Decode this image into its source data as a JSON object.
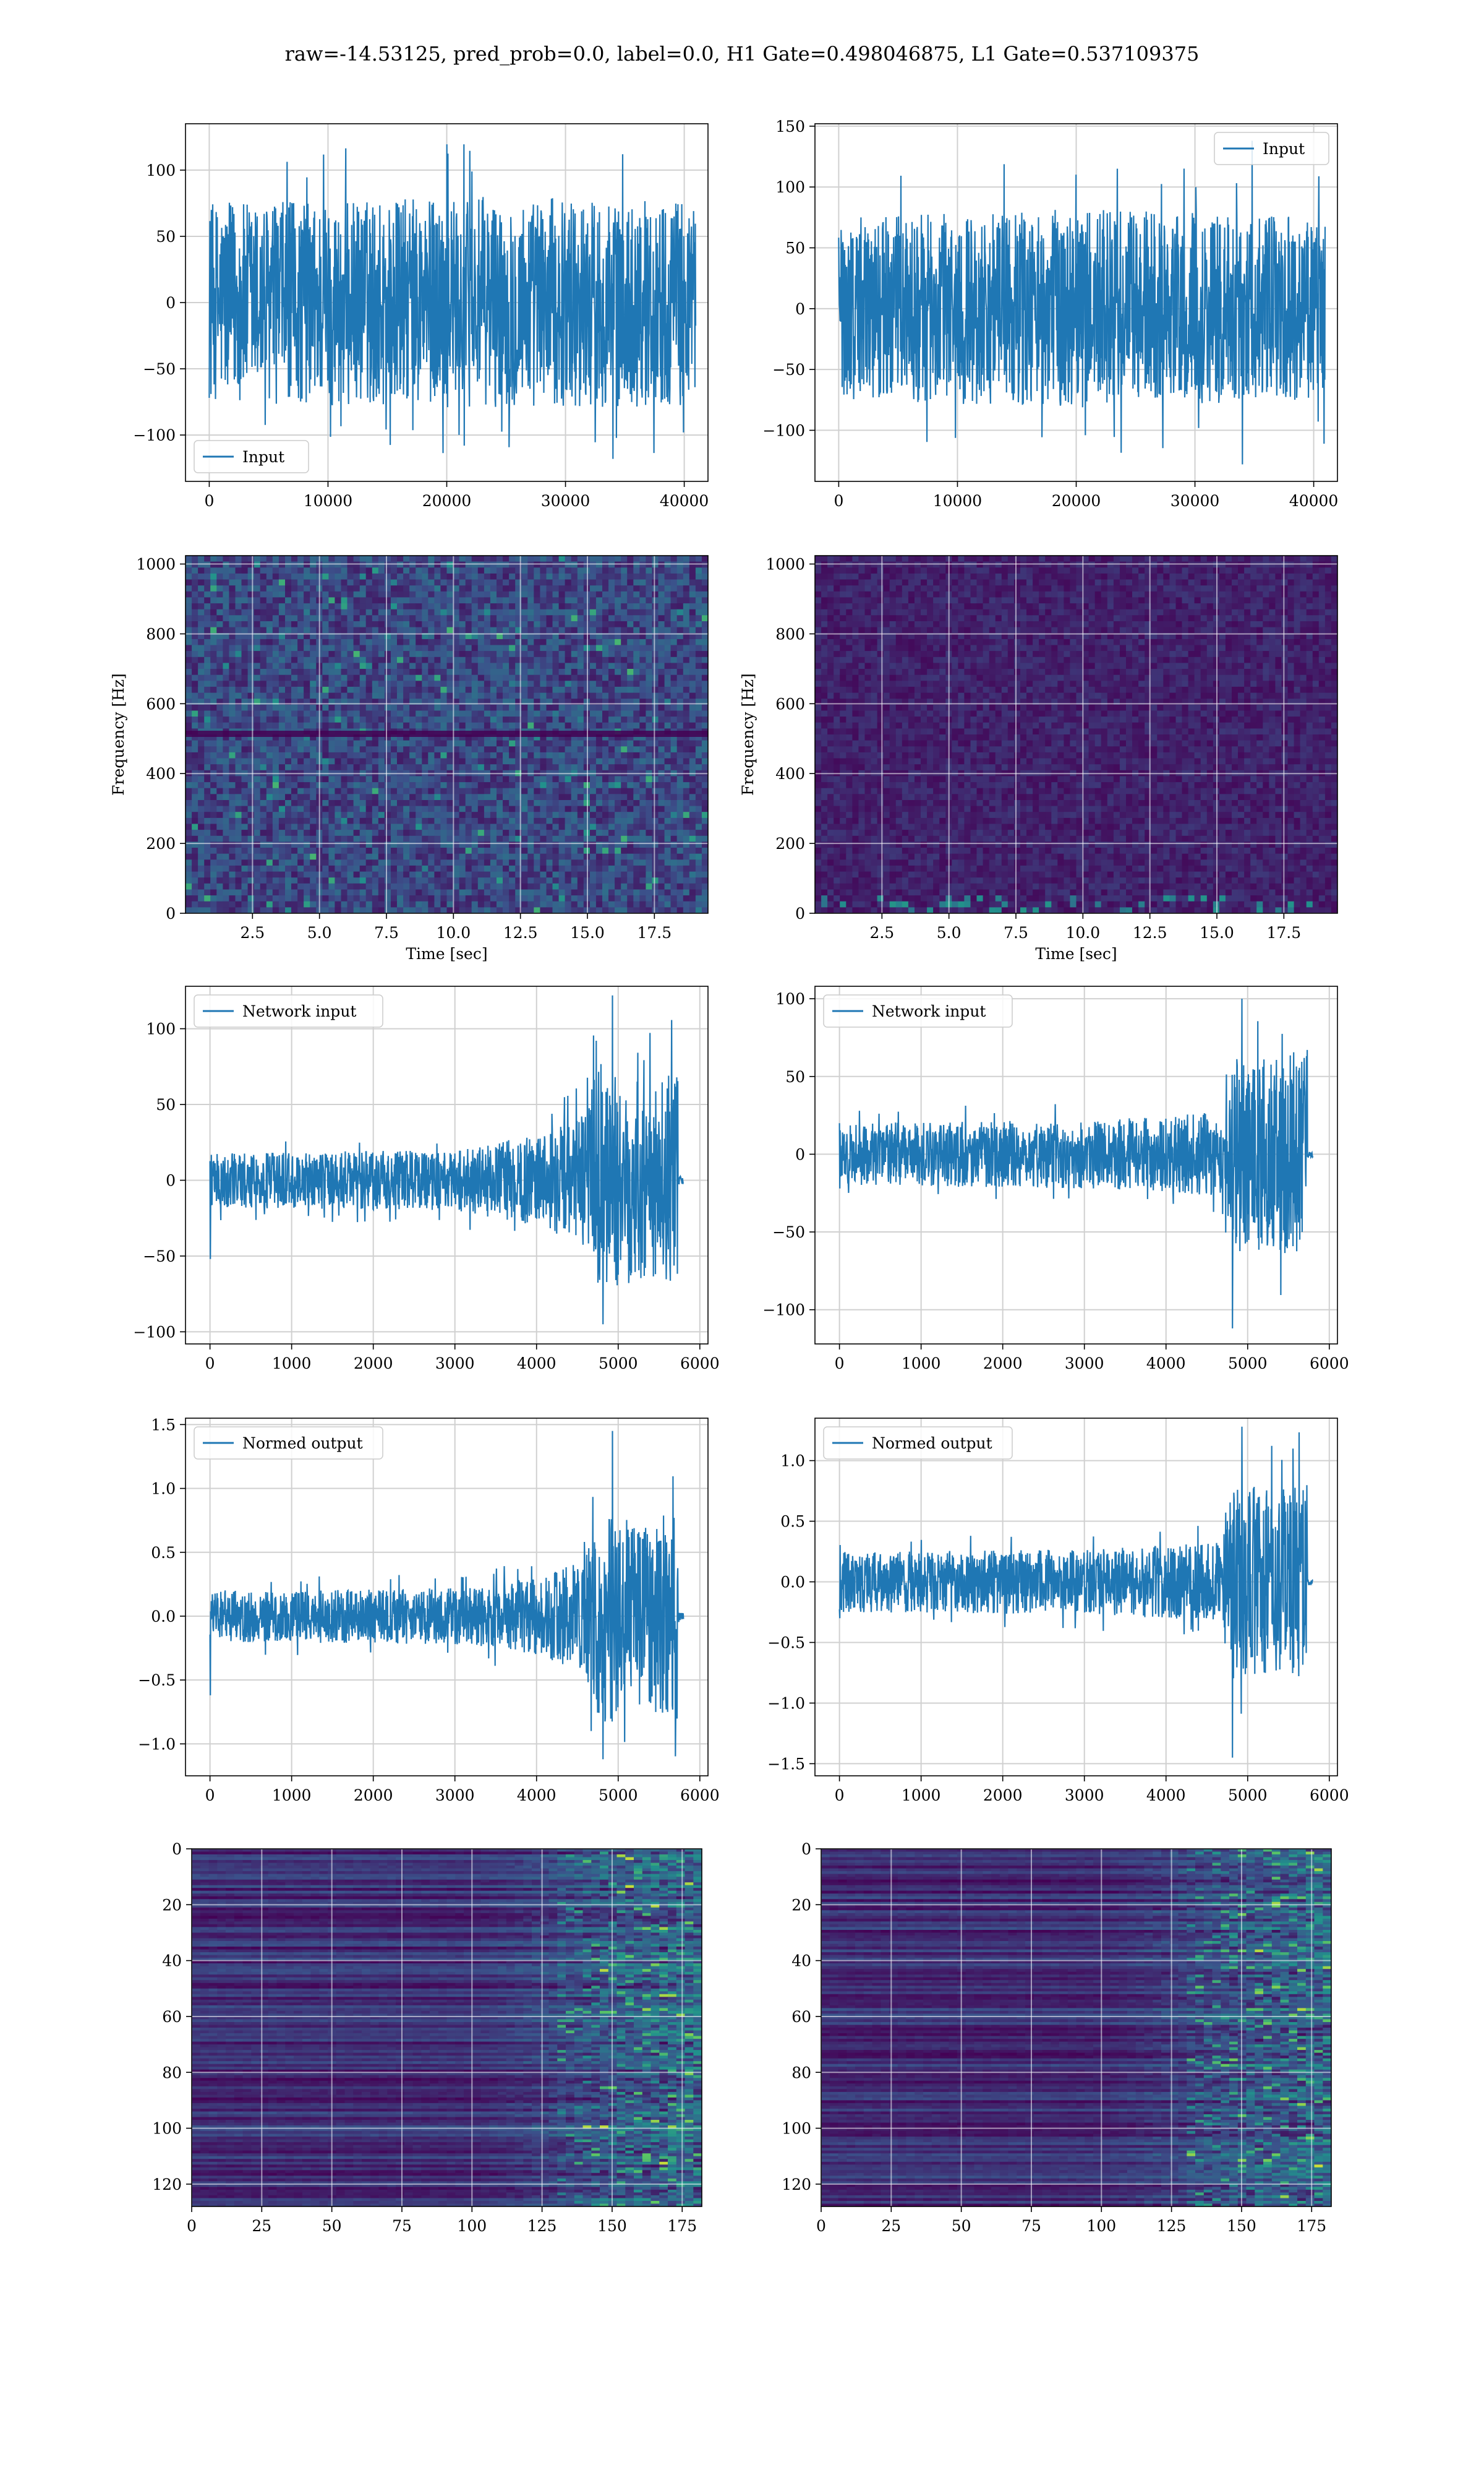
{
  "title": "raw=-14.53125, pred_prob=0.0, label=0.0, H1 Gate=0.498046875, L1 Gate=0.537109375",
  "colors": {
    "line": "#1f77b4",
    "grid": "#d0d0d0",
    "viridis_low": "#440154",
    "viridis_mid": "#21918c",
    "viridis_high": "#fde725"
  },
  "chart_data": [
    {
      "id": "h1-input",
      "type": "line",
      "legend": "Input",
      "legend_loc": "lower-left",
      "xlim": [
        -2000,
        42000
      ],
      "ylim": [
        -135,
        135
      ],
      "xticks": [
        0,
        10000,
        20000,
        30000,
        40000
      ],
      "yticks": [
        -100,
        -50,
        0,
        50,
        100
      ],
      "xticklabels": [
        "0",
        "10000",
        "20000",
        "30000",
        "40000"
      ],
      "yticklabels": [
        "−100",
        "−50",
        "0",
        "50",
        "100"
      ],
      "xlabel": "",
      "ylabel": "",
      "grid": true,
      "signal": {
        "x_end": 40960,
        "envelope": [
          [
            0,
            75
          ],
          [
            0.5,
            80
          ],
          [
            1,
            78
          ]
        ],
        "spike": 112,
        "spike_min": -118
      }
    },
    {
      "id": "l1-input",
      "type": "line",
      "legend": "Input",
      "legend_loc": "upper-right",
      "xlim": [
        -2000,
        42000
      ],
      "ylim": [
        -142,
        152
      ],
      "xticks": [
        0,
        10000,
        20000,
        30000,
        40000
      ],
      "yticks": [
        -100,
        -50,
        0,
        50,
        100,
        150
      ],
      "xticklabels": [
        "0",
        "10000",
        "20000",
        "30000",
        "40000"
      ],
      "yticklabels": [
        "−100",
        "−50",
        "0",
        "50",
        "100",
        "150"
      ],
      "xlabel": "",
      "ylabel": "",
      "grid": true,
      "signal": {
        "x_end": 40960,
        "envelope": [
          [
            0,
            75
          ],
          [
            0.5,
            82
          ],
          [
            1,
            75
          ]
        ],
        "spike": 138,
        "spike_min": -128
      }
    },
    {
      "id": "h1-spectrogram",
      "type": "heatmap",
      "xlim": [
        0,
        19.5
      ],
      "ylim": [
        0,
        1024
      ],
      "xticks": [
        2.5,
        5.0,
        7.5,
        10.0,
        12.5,
        15.0,
        17.5
      ],
      "yticks": [
        0,
        200,
        400,
        600,
        800,
        1000
      ],
      "xticklabels": [
        "2.5",
        "5.0",
        "7.5",
        "10.0",
        "12.5",
        "15.0",
        "17.5"
      ],
      "yticklabels": [
        "0",
        "200",
        "400",
        "600",
        "800",
        "1000"
      ],
      "xlabel": "Time [sec]",
      "ylabel": "Frequency [Hz]",
      "grid": true,
      "style": "bright"
    },
    {
      "id": "l1-spectrogram",
      "type": "heatmap",
      "xlim": [
        0,
        19.5
      ],
      "ylim": [
        0,
        1024
      ],
      "xticks": [
        2.5,
        5.0,
        7.5,
        10.0,
        12.5,
        15.0,
        17.5
      ],
      "yticks": [
        0,
        200,
        400,
        600,
        800,
        1000
      ],
      "xticklabels": [
        "2.5",
        "5.0",
        "7.5",
        "10.0",
        "12.5",
        "15.0",
        "17.5"
      ],
      "yticklabels": [
        "0",
        "200",
        "400",
        "600",
        "800",
        "1000"
      ],
      "xlabel": "Time [sec]",
      "ylabel": "Frequency [Hz]",
      "grid": true,
      "style": "dark"
    },
    {
      "id": "h1-network-input",
      "type": "line",
      "legend": "Network input",
      "legend_loc": "upper-left",
      "xlim": [
        -300,
        6100
      ],
      "ylim": [
        -108,
        128
      ],
      "xticks": [
        0,
        1000,
        2000,
        3000,
        4000,
        5000,
        6000
      ],
      "yticks": [
        -100,
        -50,
        0,
        50,
        100
      ],
      "xticklabels": [
        "0",
        "1000",
        "2000",
        "3000",
        "4000",
        "5000",
        "6000"
      ],
      "yticklabels": [
        "−100",
        "−50",
        "0",
        "50",
        "100"
      ],
      "xlabel": "",
      "ylabel": "",
      "grid": true,
      "signal": {
        "x_end": 5800,
        "active_end": 5730,
        "envelope": [
          [
            0,
            18
          ],
          [
            3000,
            20
          ],
          [
            4000,
            30
          ],
          [
            4600,
            45
          ],
          [
            4750,
            80
          ],
          [
            5000,
            70
          ],
          [
            5300,
            65
          ],
          [
            5730,
            75
          ]
        ],
        "spike": 122,
        "spike_min": -95,
        "start_dip": -52
      }
    },
    {
      "id": "l1-network-input",
      "type": "line",
      "legend": "Network input",
      "legend_loc": "upper-left",
      "xlim": [
        -300,
        6100
      ],
      "ylim": [
        -122,
        108
      ],
      "xticks": [
        0,
        1000,
        2000,
        3000,
        4000,
        5000,
        6000
      ],
      "yticks": [
        -100,
        -50,
        0,
        50,
        100
      ],
      "xticklabels": [
        "0",
        "1000",
        "2000",
        "3000",
        "4000",
        "5000",
        "6000"
      ],
      "yticklabels": [
        "−100",
        "−50",
        "0",
        "50",
        "100"
      ],
      "xlabel": "",
      "ylabel": "",
      "grid": true,
      "signal": {
        "x_end": 5800,
        "active_end": 5730,
        "envelope": [
          [
            0,
            20
          ],
          [
            3000,
            22
          ],
          [
            4000,
            24
          ],
          [
            4700,
            28
          ],
          [
            4750,
            65
          ],
          [
            5000,
            65
          ],
          [
            5300,
            60
          ],
          [
            5730,
            70
          ]
        ],
        "spike": 100,
        "spike_min": -112,
        "start_dip": -22
      }
    },
    {
      "id": "h1-normed-output",
      "type": "line",
      "legend": "Normed output",
      "legend_loc": "upper-left",
      "xlim": [
        -300,
        6100
      ],
      "ylim": [
        -1.25,
        1.55
      ],
      "xticks": [
        0,
        1000,
        2000,
        3000,
        4000,
        5000,
        6000
      ],
      "yticks": [
        -1.0,
        -0.5,
        0.0,
        0.5,
        1.0,
        1.5
      ],
      "xticklabels": [
        "0",
        "1000",
        "2000",
        "3000",
        "4000",
        "5000",
        "6000"
      ],
      "yticklabels": [
        "−1.0",
        "−0.5",
        "0.0",
        "0.5",
        "1.0",
        "1.5"
      ],
      "xlabel": "",
      "ylabel": "",
      "grid": true,
      "signal": {
        "x_end": 5800,
        "active_end": 5730,
        "envelope": [
          [
            0,
            0.2
          ],
          [
            3000,
            0.22
          ],
          [
            4000,
            0.3
          ],
          [
            4600,
            0.45
          ],
          [
            4750,
            0.9
          ],
          [
            5000,
            0.8
          ],
          [
            5300,
            0.7
          ],
          [
            5730,
            0.85
          ]
        ],
        "spike": 1.45,
        "spike_min": -1.12,
        "start_dip": -0.62
      }
    },
    {
      "id": "l1-normed-output",
      "type": "line",
      "legend": "Normed output",
      "legend_loc": "upper-left",
      "xlim": [
        -300,
        6100
      ],
      "ylim": [
        -1.6,
        1.35
      ],
      "xticks": [
        0,
        1000,
        2000,
        3000,
        4000,
        5000,
        6000
      ],
      "yticks": [
        -1.5,
        -1.0,
        -0.5,
        0.0,
        0.5,
        1.0
      ],
      "xticklabels": [
        "0",
        "1000",
        "2000",
        "3000",
        "4000",
        "5000",
        "6000"
      ],
      "yticklabels": [
        "−1.5",
        "−1.0",
        "−0.5",
        "0.0",
        "0.5",
        "1.0"
      ],
      "xlabel": "",
      "ylabel": "",
      "grid": true,
      "signal": {
        "x_end": 5800,
        "active_end": 5730,
        "envelope": [
          [
            0,
            0.25
          ],
          [
            3000,
            0.27
          ],
          [
            4000,
            0.3
          ],
          [
            4700,
            0.33
          ],
          [
            4750,
            0.8
          ],
          [
            5000,
            0.8
          ],
          [
            5300,
            0.75
          ],
          [
            5730,
            0.85
          ]
        ],
        "spike": 1.28,
        "spike_min": -1.45,
        "start_dip": -0.3
      }
    },
    {
      "id": "h1-feature-map",
      "type": "heatmap",
      "xlim": [
        0,
        182
      ],
      "ylim": [
        128,
        0
      ],
      "xticks": [
        0,
        25,
        50,
        75,
        100,
        125,
        150,
        175
      ],
      "yticks": [
        0,
        20,
        40,
        60,
        80,
        100,
        120
      ],
      "xticklabels": [
        "0",
        "25",
        "50",
        "75",
        "100",
        "125",
        "150",
        "175"
      ],
      "yticklabels": [
        "0",
        "20",
        "40",
        "60",
        "80",
        "100",
        "120"
      ],
      "xlabel": "",
      "ylabel": "",
      "grid": true,
      "style": "feature"
    },
    {
      "id": "l1-feature-map",
      "type": "heatmap",
      "xlim": [
        0,
        182
      ],
      "ylim": [
        128,
        0
      ],
      "xticks": [
        0,
        25,
        50,
        75,
        100,
        125,
        150,
        175
      ],
      "yticks": [
        0,
        20,
        40,
        60,
        80,
        100,
        120
      ],
      "xticklabels": [
        "0",
        "25",
        "50",
        "75",
        "100",
        "125",
        "150",
        "175"
      ],
      "yticklabels": [
        "0",
        "20",
        "40",
        "60",
        "80",
        "100",
        "120"
      ],
      "xlabel": "",
      "ylabel": "",
      "grid": true,
      "style": "feature"
    }
  ]
}
